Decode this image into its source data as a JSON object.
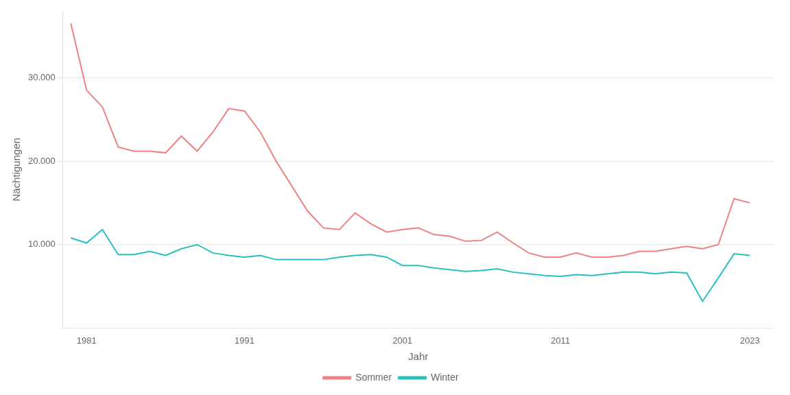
{
  "chart_data": {
    "type": "line",
    "x": [
      1980,
      1981,
      1982,
      1983,
      1984,
      1985,
      1986,
      1987,
      1988,
      1989,
      1990,
      1991,
      1992,
      1993,
      1994,
      1995,
      1996,
      1997,
      1998,
      1999,
      2000,
      2001,
      2002,
      2003,
      2004,
      2005,
      2006,
      2007,
      2008,
      2009,
      2010,
      2011,
      2012,
      2013,
      2014,
      2015,
      2016,
      2017,
      2018,
      2019,
      2020,
      2021,
      2022,
      2023
    ],
    "series": [
      {
        "name": "Sommer",
        "color": "#F08080",
        "values": [
          36500,
          28500,
          26500,
          21700,
          21200,
          21200,
          21000,
          23000,
          21200,
          23500,
          26300,
          26000,
          23500,
          20000,
          17000,
          14000,
          12000,
          11800,
          13800,
          12500,
          11500,
          11800,
          12000,
          11200,
          11000,
          10400,
          10500,
          11500,
          10200,
          9000,
          8500,
          8500,
          9000,
          8500,
          8500,
          8700,
          9200,
          9200,
          9500,
          9800,
          9500,
          10000,
          15500,
          15000
        ]
      },
      {
        "name": "Winter",
        "color": "#2ABFBF",
        "values": [
          10800,
          10200,
          11800,
          8800,
          8800,
          9200,
          8700,
          9500,
          10000,
          9000,
          8700,
          8500,
          8700,
          8200,
          8200,
          8200,
          8200,
          8500,
          8700,
          8800,
          8500,
          7500,
          7500,
          7200,
          7000,
          6800,
          6900,
          7100,
          6700,
          6500,
          6300,
          6200,
          6400,
          6300,
          6500,
          6700,
          6700,
          6500,
          6700,
          6600,
          3200,
          6000,
          8900,
          8700
        ]
      }
    ],
    "xlabel": "Jahr",
    "ylabel": "Nächtigungen",
    "xlim": [
      1979.5,
      2024.5
    ],
    "ylim": [
      0,
      38000
    ],
    "xticks": [
      1981,
      1991,
      2001,
      2011,
      2023
    ],
    "yticks": [
      {
        "value": 10000,
        "label": "10.000"
      },
      {
        "value": 20000,
        "label": "20.000"
      },
      {
        "value": 30000,
        "label": "30.000"
      }
    ],
    "grid": "y",
    "legend": "bottom"
  }
}
